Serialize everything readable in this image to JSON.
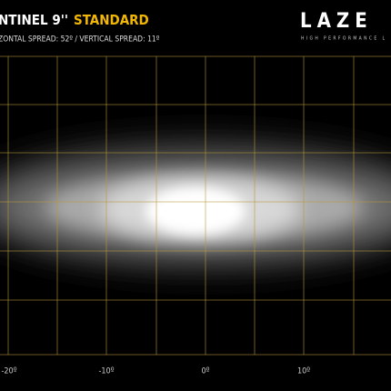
{
  "header": {
    "title": "NTINEL 9''",
    "title_highlight": "STANDARD",
    "subtitle": "ZONTAL SPREAD: 52º  /  VERTICAL SPREAD: 11º"
  },
  "logo": {
    "name": "LAZE",
    "tagline": "HIGH PERFORMANCE L"
  },
  "axis": {
    "labels": [
      "-20º",
      "-10º",
      "0º",
      "10º"
    ]
  }
}
